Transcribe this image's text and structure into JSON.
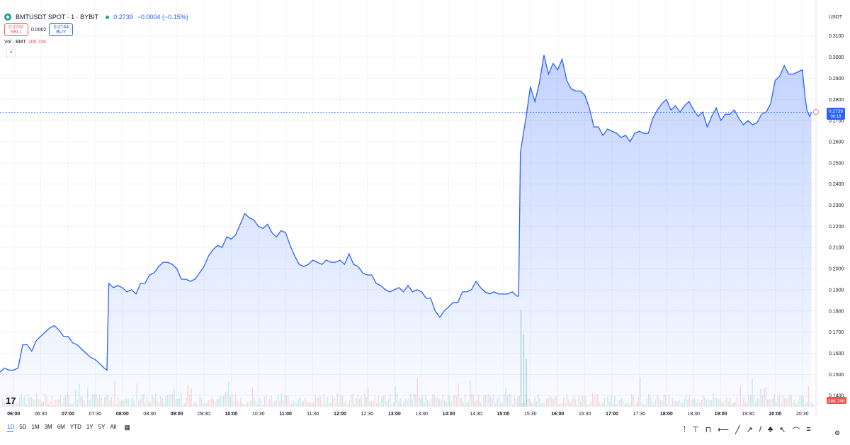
{
  "header": {
    "symbol": "BMTUSDT SPOT · 1 · BYBIT",
    "price": "0.2739",
    "change": "−0.0004 (−0.15%)",
    "sell_price": "0.2742",
    "sell_label": "SELL",
    "spread": "0.0002",
    "buy_price": "0.2744",
    "buy_label": "BUY",
    "volume_label": "Vol · BMT",
    "volume_value": "266.74K",
    "currency": "USDT"
  },
  "price_tag": {
    "price": "0.2739",
    "countdown": "00:19"
  },
  "volume_tag": "266.74K",
  "range_buttons": [
    "1D",
    "5D",
    "1M",
    "3M",
    "6M",
    "YTD",
    "1Y",
    "5Y",
    "All"
  ],
  "colors": {
    "line": "#2962ff",
    "up": "#26a69a",
    "down": "#ef5350",
    "accent": "#2962ff"
  },
  "chart_data": {
    "type": "area",
    "x_unit": "time (HH:MM), 1-minute bars",
    "x_ticks": [
      "06:00",
      "06:30",
      "07:00",
      "07:30",
      "08:00",
      "08:30",
      "09:00",
      "09:30",
      "10:00",
      "10:30",
      "11:00",
      "11:30",
      "12:00",
      "12:30",
      "13:00",
      "13:30",
      "14:00",
      "14:30",
      "15:00",
      "15:30",
      "16:00",
      "16:30",
      "17:00",
      "17:30",
      "18:00",
      "18:30",
      "19:00",
      "19:30",
      "20:00",
      "20:30"
    ],
    "x_range": [
      "05:45",
      "20:45"
    ],
    "y_ticks": [
      0.31,
      0.3,
      0.29,
      0.28,
      0.27,
      0.26,
      0.25,
      0.24,
      0.23,
      0.22,
      0.21,
      0.2,
      0.19,
      0.18,
      0.17,
      0.16,
      0.15,
      0.14
    ],
    "y_range": [
      0.1347,
      0.3136
    ],
    "current_price": 0.2739,
    "grid": true,
    "price_points": [
      [
        "05:45",
        0.151
      ],
      [
        "05:50",
        0.153
      ],
      [
        "05:55",
        0.152
      ],
      [
        "06:00",
        0.152
      ],
      [
        "06:05",
        0.153
      ],
      [
        "06:10",
        0.164
      ],
      [
        "06:15",
        0.164
      ],
      [
        "06:20",
        0.161
      ],
      [
        "06:25",
        0.166
      ],
      [
        "06:30",
        0.168
      ],
      [
        "06:35",
        0.17
      ],
      [
        "06:40",
        0.172
      ],
      [
        "06:45",
        0.173
      ],
      [
        "06:50",
        0.171
      ],
      [
        "06:55",
        0.168
      ],
      [
        "07:00",
        0.168
      ],
      [
        "07:05",
        0.165
      ],
      [
        "07:10",
        0.164
      ],
      [
        "07:15",
        0.162
      ],
      [
        "07:20",
        0.16
      ],
      [
        "07:25",
        0.158
      ],
      [
        "07:30",
        0.157
      ],
      [
        "07:35",
        0.155
      ],
      [
        "07:40",
        0.153
      ],
      [
        "07:43",
        0.152
      ],
      [
        "07:45",
        0.193
      ],
      [
        "07:50",
        0.191
      ],
      [
        "07:55",
        0.192
      ],
      [
        "08:00",
        0.191
      ],
      [
        "08:05",
        0.189
      ],
      [
        "08:10",
        0.19
      ],
      [
        "08:15",
        0.188
      ],
      [
        "08:20",
        0.193
      ],
      [
        "08:25",
        0.193
      ],
      [
        "08:30",
        0.197
      ],
      [
        "08:35",
        0.198
      ],
      [
        "08:40",
        0.201
      ],
      [
        "08:45",
        0.203
      ],
      [
        "08:50",
        0.203
      ],
      [
        "08:55",
        0.202
      ],
      [
        "09:00",
        0.2
      ],
      [
        "09:05",
        0.195
      ],
      [
        "09:10",
        0.195
      ],
      [
        "09:15",
        0.194
      ],
      [
        "09:20",
        0.195
      ],
      [
        "09:25",
        0.198
      ],
      [
        "09:30",
        0.201
      ],
      [
        "09:35",
        0.206
      ],
      [
        "09:40",
        0.209
      ],
      [
        "09:45",
        0.211
      ],
      [
        "09:50",
        0.21
      ],
      [
        "09:55",
        0.215
      ],
      [
        "10:00",
        0.214
      ],
      [
        "10:05",
        0.216
      ],
      [
        "10:10",
        0.221
      ],
      [
        "10:15",
        0.226
      ],
      [
        "10:20",
        0.224
      ],
      [
        "10:25",
        0.223
      ],
      [
        "10:30",
        0.22
      ],
      [
        "10:35",
        0.219
      ],
      [
        "10:40",
        0.221
      ],
      [
        "10:45",
        0.217
      ],
      [
        "10:50",
        0.215
      ],
      [
        "10:55",
        0.218
      ],
      [
        "11:00",
        0.217
      ],
      [
        "11:05",
        0.211
      ],
      [
        "11:10",
        0.206
      ],
      [
        "11:15",
        0.202
      ],
      [
        "11:20",
        0.201
      ],
      [
        "11:25",
        0.202
      ],
      [
        "11:30",
        0.204
      ],
      [
        "11:35",
        0.203
      ],
      [
        "11:40",
        0.202
      ],
      [
        "11:45",
        0.204
      ],
      [
        "11:50",
        0.203
      ],
      [
        "11:55",
        0.203
      ],
      [
        "12:00",
        0.204
      ],
      [
        "12:05",
        0.202
      ],
      [
        "12:10",
        0.207
      ],
      [
        "12:15",
        0.202
      ],
      [
        "12:20",
        0.201
      ],
      [
        "12:25",
        0.198
      ],
      [
        "12:30",
        0.197
      ],
      [
        "12:35",
        0.197
      ],
      [
        "12:40",
        0.193
      ],
      [
        "12:45",
        0.192
      ],
      [
        "12:50",
        0.19
      ],
      [
        "12:55",
        0.189
      ],
      [
        "13:00",
        0.19
      ],
      [
        "13:05",
        0.191
      ],
      [
        "13:10",
        0.189
      ],
      [
        "13:15",
        0.192
      ],
      [
        "13:20",
        0.189
      ],
      [
        "13:25",
        0.19
      ],
      [
        "13:30",
        0.189
      ],
      [
        "13:35",
        0.186
      ],
      [
        "13:40",
        0.186
      ],
      [
        "13:45",
        0.18
      ],
      [
        "13:50",
        0.177
      ],
      [
        "13:55",
        0.18
      ],
      [
        "14:00",
        0.182
      ],
      [
        "14:05",
        0.184
      ],
      [
        "14:10",
        0.184
      ],
      [
        "14:15",
        0.189
      ],
      [
        "14:20",
        0.189
      ],
      [
        "14:25",
        0.19
      ],
      [
        "14:30",
        0.194
      ],
      [
        "14:35",
        0.191
      ],
      [
        "14:40",
        0.189
      ],
      [
        "14:45",
        0.188
      ],
      [
        "14:50",
        0.189
      ],
      [
        "14:55",
        0.188
      ],
      [
        "15:00",
        0.188
      ],
      [
        "15:05",
        0.188
      ],
      [
        "15:10",
        0.189
      ],
      [
        "15:15",
        0.187
      ],
      [
        "15:17",
        0.187
      ],
      [
        "15:19",
        0.255
      ],
      [
        "15:25",
        0.271
      ],
      [
        "15:30",
        0.286
      ],
      [
        "15:35",
        0.279
      ],
      [
        "15:40",
        0.288
      ],
      [
        "15:45",
        0.301
      ],
      [
        "15:50",
        0.292
      ],
      [
        "15:55",
        0.297
      ],
      [
        "16:00",
        0.294
      ],
      [
        "16:05",
        0.299
      ],
      [
        "16:10",
        0.289
      ],
      [
        "16:15",
        0.285
      ],
      [
        "16:20",
        0.284
      ],
      [
        "16:25",
        0.284
      ],
      [
        "16:30",
        0.282
      ],
      [
        "16:35",
        0.276
      ],
      [
        "16:40",
        0.267
      ],
      [
        "16:45",
        0.267
      ],
      [
        "16:50",
        0.263
      ],
      [
        "16:55",
        0.266
      ],
      [
        "17:00",
        0.265
      ],
      [
        "17:05",
        0.264
      ],
      [
        "17:10",
        0.262
      ],
      [
        "17:15",
        0.263
      ],
      [
        "17:20",
        0.26
      ],
      [
        "17:25",
        0.264
      ],
      [
        "17:30",
        0.265
      ],
      [
        "17:35",
        0.264
      ],
      [
        "17:40",
        0.264
      ],
      [
        "17:45",
        0.271
      ],
      [
        "17:50",
        0.275
      ],
      [
        "17:55",
        0.278
      ],
      [
        "18:00",
        0.28
      ],
      [
        "18:05",
        0.275
      ],
      [
        "18:10",
        0.277
      ],
      [
        "18:15",
        0.274
      ],
      [
        "18:20",
        0.277
      ],
      [
        "18:25",
        0.279
      ],
      [
        "18:30",
        0.275
      ],
      [
        "18:35",
        0.272
      ],
      [
        "18:40",
        0.274
      ],
      [
        "18:45",
        0.267
      ],
      [
        "18:50",
        0.272
      ],
      [
        "18:55",
        0.276
      ],
      [
        "19:00",
        0.27
      ],
      [
        "19:05",
        0.273
      ],
      [
        "19:10",
        0.273
      ],
      [
        "19:15",
        0.275
      ],
      [
        "19:20",
        0.271
      ],
      [
        "19:25",
        0.268
      ],
      [
        "19:30",
        0.27
      ],
      [
        "19:35",
        0.268
      ],
      [
        "19:40",
        0.269
      ],
      [
        "19:45",
        0.273
      ],
      [
        "19:50",
        0.274
      ],
      [
        "19:55",
        0.278
      ],
      [
        "20:00",
        0.289
      ],
      [
        "20:05",
        0.291
      ],
      [
        "20:10",
        0.296
      ],
      [
        "20:15",
        0.292
      ],
      [
        "20:20",
        0.292
      ],
      [
        "20:25",
        0.293
      ],
      [
        "20:30",
        0.294
      ],
      [
        "20:33",
        0.281
      ],
      [
        "20:35",
        0.275
      ],
      [
        "20:38",
        0.272
      ],
      [
        "20:40",
        0.2739
      ]
    ],
    "volume_bars": [
      {
        "time": "15:19",
        "label": "spike",
        "relative_height": 1.0
      },
      {
        "time": "15:22",
        "label": "spike",
        "relative_height": 0.75
      },
      {
        "time": "15:25",
        "label": "spike",
        "relative_height": 0.5
      }
    ]
  }
}
